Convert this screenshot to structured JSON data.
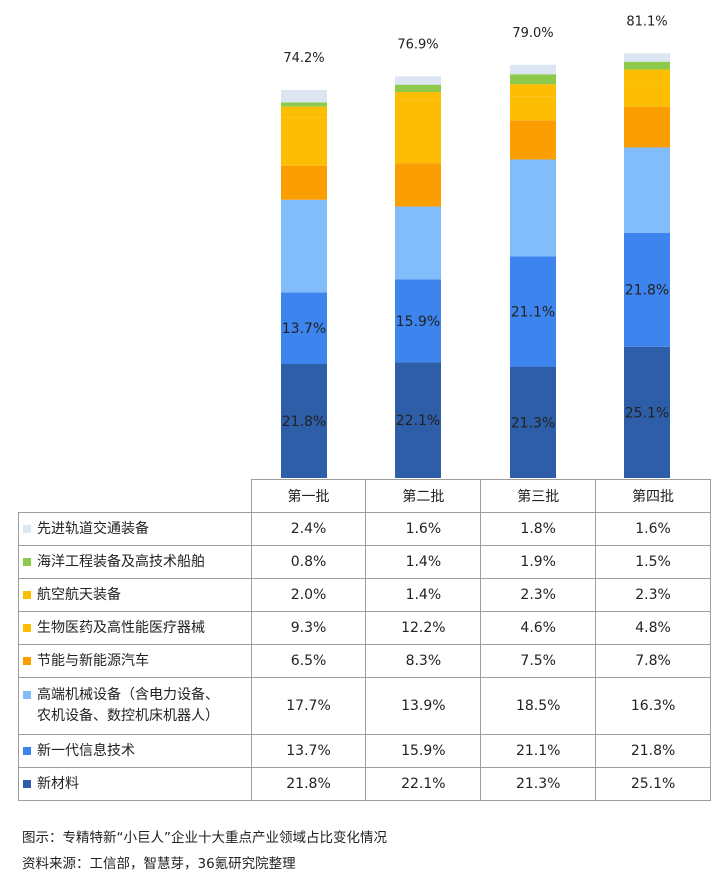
{
  "chart_data": {
    "type": "bar",
    "stacked": true,
    "categories": [
      "第一批",
      "第二批",
      "第三批",
      "第四批"
    ],
    "totals": [
      "74.2%",
      "76.9%",
      "79.0%",
      "81.1%"
    ],
    "ylim": [
      0,
      82
    ],
    "series": [
      {
        "name": "新材料",
        "color": "#2e5ea8",
        "values": [
          21.8,
          22.1,
          21.3,
          25.1
        ],
        "labels": [
          "21.8%",
          "22.1%",
          "21.3%",
          "25.1%"
        ],
        "show_label": true
      },
      {
        "name": "新一代信息技术",
        "color": "#3d84ee",
        "values": [
          13.7,
          15.9,
          21.1,
          21.8
        ],
        "labels": [
          "13.7%",
          "15.9%",
          "21.1%",
          "21.8%"
        ],
        "show_label": true
      },
      {
        "name": "高端机械设备（含电力设备、\n农机设备、数控机床机器人）",
        "color": "#80bdfa",
        "values": [
          17.7,
          13.9,
          18.5,
          16.3
        ],
        "labels": [
          "17.7%",
          "13.9%",
          "18.5%",
          "16.3%"
        ],
        "show_label": false
      },
      {
        "name": "节能与新能源汽车",
        "color": "#fb9e02",
        "values": [
          6.5,
          8.3,
          7.5,
          7.8
        ],
        "labels": [
          "6.5%",
          "8.3%",
          "7.5%",
          "7.8%"
        ],
        "show_label": false
      },
      {
        "name": "生物医药及高性能医疗器械",
        "color": "#fdbd02",
        "values": [
          9.3,
          12.2,
          4.6,
          4.8
        ],
        "labels": [
          "9.3%",
          "12.2%",
          "4.6%",
          "4.8%"
        ],
        "show_label": false
      },
      {
        "name": "航空航天装备",
        "color": "#fdbd02",
        "values": [
          2.0,
          1.4,
          2.3,
          2.3
        ],
        "labels": [
          "2.0%",
          "1.4%",
          "2.3%",
          "2.3%"
        ],
        "show_label": false
      },
      {
        "name": "海洋工程装备及高技术船舶",
        "color": "#8dc94a",
        "values": [
          0.8,
          1.4,
          1.9,
          1.5
        ],
        "labels": [
          "0.8%",
          "1.4%",
          "1.9%",
          "1.5%"
        ],
        "show_label": false
      },
      {
        "name": "先进轨道交通装备",
        "color": "#dce6f2",
        "values": [
          2.4,
          1.6,
          1.8,
          1.6
        ],
        "labels": [
          "2.4%",
          "1.6%",
          "1.8%",
          "1.6%"
        ],
        "show_label": false
      }
    ],
    "table_row_order": [
      "先进轨道交通装备",
      "海洋工程装备及高技术船舶",
      "航空航天装备",
      "生物医药及高性能医疗器械",
      "节能与新能源汽车",
      "高端机械设备（含电力设备、\n农机设备、数控机床机器人）",
      "新一代信息技术",
      "新材料"
    ]
  },
  "caption": {
    "figure": "图示：专精特新“小巨人”企业十大重点产业领域占比变化情况",
    "source": "资料来源：工信部，智慧芽，36氪研究院整理"
  }
}
